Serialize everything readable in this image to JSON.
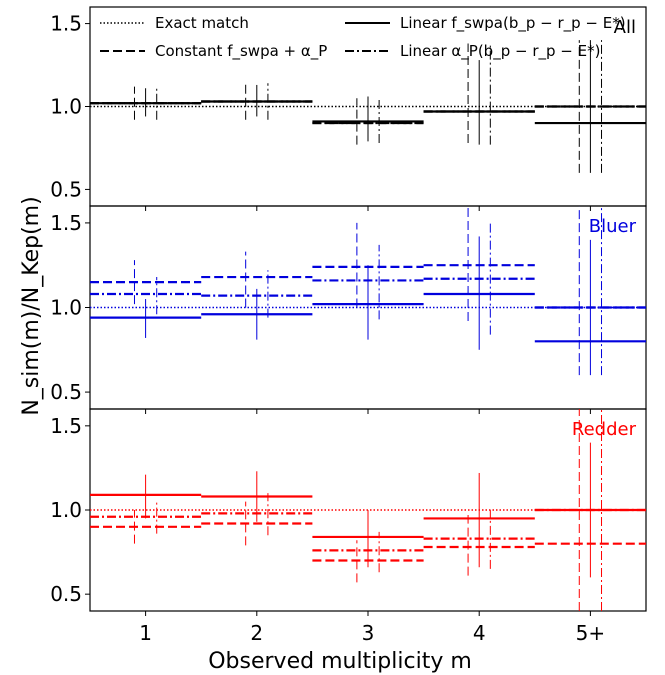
{
  "chart_data": {
    "type": "line",
    "xlabel": "Observed multiplicity m",
    "ylabel": "N_sim(m)/N_Kep(m)",
    "categories": [
      "1",
      "2",
      "3",
      "4",
      "5+"
    ],
    "x": [
      1,
      2,
      3,
      4,
      5
    ],
    "xlim": [
      0.5,
      5.5
    ],
    "ylim": [
      0.4,
      1.6
    ],
    "yticks": [
      0.5,
      1.0,
      1.5
    ],
    "ytick_labels": [
      "0.5",
      "1.0",
      "1.5"
    ],
    "reference_line": {
      "name": "Exact match",
      "value": 1.0,
      "style": "dotted"
    },
    "legend": {
      "placement": "top",
      "entries": [
        {
          "label": "Exact match",
          "style": "dotted"
        },
        {
          "label": "Constant f_swpa + α_P",
          "style": "dashed"
        },
        {
          "label": "Linear f_swpa(b_p − r_p − E*)",
          "style": "solid"
        },
        {
          "label": "Linear α_P(b_p − r_p − E*)",
          "style": "dashdot"
        }
      ]
    },
    "panels": [
      {
        "label": "All",
        "color": "#000000",
        "series": [
          {
            "style": "dashed",
            "values": [
              1.02,
              1.03,
              0.9,
              0.97,
              1.0
            ],
            "err_low": [
              0.92,
              0.92,
              0.77,
              0.78,
              0.6
            ],
            "err_high": [
              1.12,
              1.14,
              1.05,
              1.38,
              1.4
            ]
          },
          {
            "style": "solid",
            "values": [
              1.02,
              1.03,
              0.91,
              0.97,
              0.9
            ],
            "err_low": [
              0.94,
              0.94,
              0.79,
              0.77,
              0.6
            ],
            "err_high": [
              1.11,
              1.13,
              1.06,
              1.28,
              1.4
            ]
          },
          {
            "style": "dashdot",
            "values": [
              1.02,
              1.03,
              0.9,
              0.97,
              1.0
            ],
            "err_low": [
              0.92,
              0.92,
              0.78,
              0.77,
              0.6
            ],
            "err_high": [
              1.12,
              1.14,
              1.04,
              1.38,
              1.4
            ]
          }
        ]
      },
      {
        "label": "Bluer",
        "color": "#0000dd",
        "series": [
          {
            "style": "dashed",
            "values": [
              1.15,
              1.18,
              1.24,
              1.25,
              1.0
            ],
            "err_low": [
              1.02,
              1.0,
              1.0,
              0.92,
              0.6
            ],
            "err_high": [
              1.28,
              1.33,
              1.5,
              1.6,
              1.6
            ]
          },
          {
            "style": "solid",
            "values": [
              0.94,
              0.96,
              1.02,
              1.08,
              0.8
            ],
            "err_low": [
              0.82,
              0.81,
              0.81,
              0.75,
              0.6
            ],
            "err_high": [
              1.05,
              1.11,
              1.25,
              1.42,
              1.4
            ]
          },
          {
            "style": "dashdot",
            "values": [
              1.08,
              1.07,
              1.16,
              1.17,
              1.0
            ],
            "err_low": [
              0.96,
              0.94,
              0.93,
              0.84,
              0.6
            ],
            "err_high": [
              1.18,
              1.22,
              1.37,
              1.5,
              1.6
            ]
          }
        ]
      },
      {
        "label": "Redder",
        "color": "#ff0000",
        "series": [
          {
            "style": "dashed",
            "values": [
              0.9,
              0.92,
              0.7,
              0.78,
              0.8
            ],
            "err_low": [
              0.8,
              0.79,
              0.57,
              0.61,
              0.4
            ],
            "err_high": [
              1.0,
              1.05,
              0.82,
              0.97,
              1.6
            ]
          },
          {
            "style": "solid",
            "values": [
              1.09,
              1.08,
              0.84,
              0.95,
              1.0
            ],
            "err_low": [
              0.95,
              0.93,
              0.66,
              0.66,
              0.6
            ],
            "err_high": [
              1.21,
              1.23,
              1.0,
              1.22,
              1.4
            ]
          },
          {
            "style": "dashdot",
            "values": [
              0.96,
              0.98,
              0.76,
              0.83,
              1.0
            ],
            "err_low": [
              0.86,
              0.85,
              0.63,
              0.65,
              0.4
            ],
            "err_high": [
              1.05,
              1.1,
              0.87,
              1.0,
              1.6
            ]
          }
        ]
      }
    ]
  }
}
